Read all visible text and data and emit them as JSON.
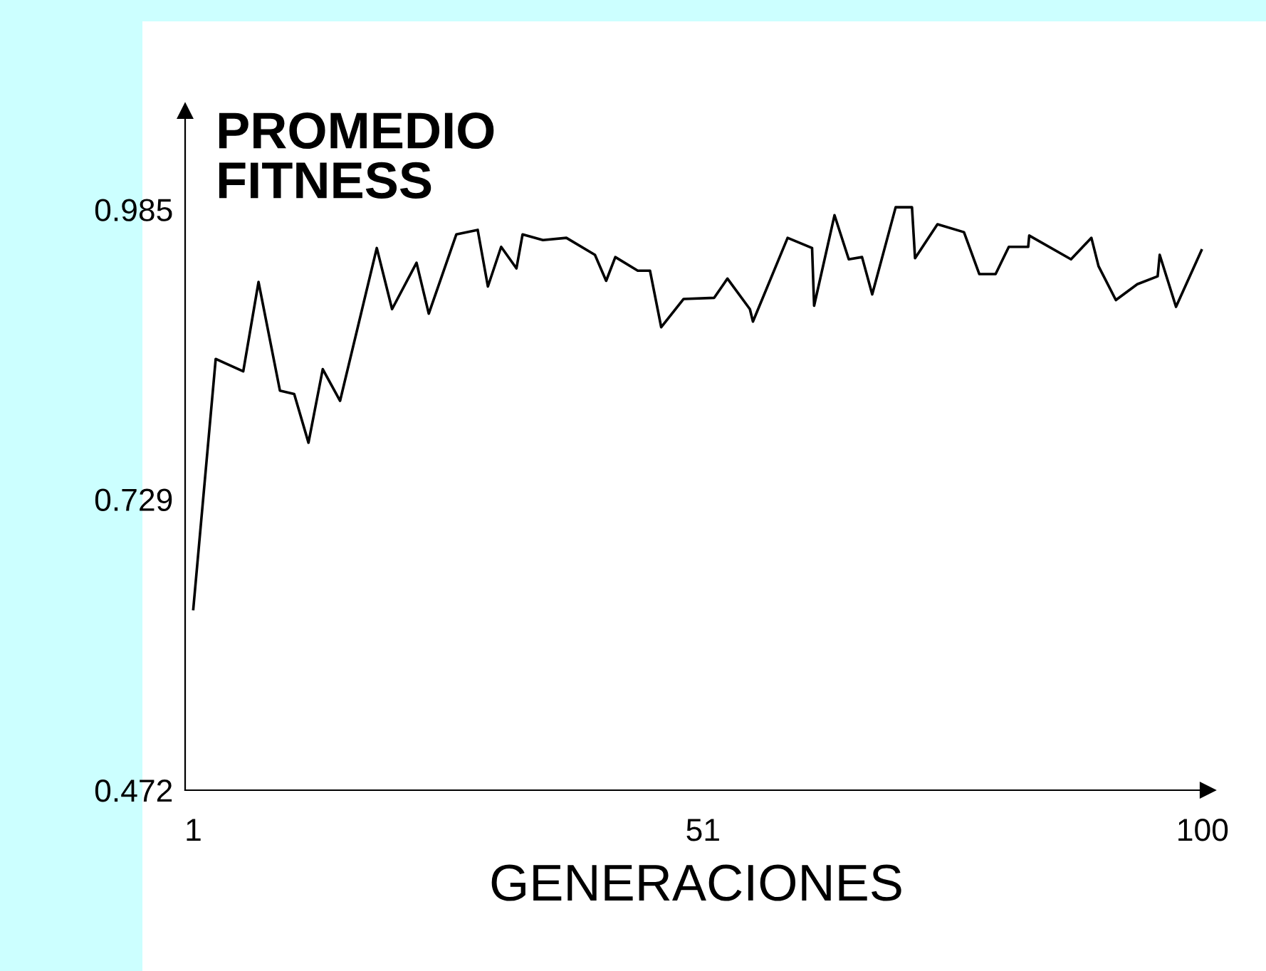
{
  "chart_data": {
    "type": "line",
    "ylabel": "PROMEDIO\nFITNESS",
    "xlabel": "GENERACIONES",
    "series": [
      {
        "color": "#000000",
        "x": [
          1,
          3.2,
          5.9,
          7.4,
          9.5,
          10.9,
          12.3,
          13.7,
          15.4,
          19.0,
          20.5,
          22.9,
          24.1,
          26.8,
          28.9,
          29.9,
          31.2,
          32.7,
          33.3,
          35.3,
          37.6,
          40.4,
          41.5,
          42.4,
          44.6,
          45.8,
          46.9,
          49.1,
          52.1,
          53.4,
          55.6,
          55.9,
          59.3,
          61.7,
          61.9,
          63.9,
          65.3,
          66.6,
          67.6,
          69.9,
          71.5,
          71.8,
          74.0,
          76.6,
          78.1,
          79.7,
          81.0,
          82.9,
          83.0,
          87.1,
          89.1,
          89.8,
          91.5,
          93.6,
          95.6,
          95.8,
          97.4,
          99.9
        ],
        "values": [
          0.632,
          0.853,
          0.842,
          0.921,
          0.825,
          0.822,
          0.779,
          0.844,
          0.816,
          0.951,
          0.897,
          0.938,
          0.893,
          0.963,
          0.967,
          0.917,
          0.952,
          0.933,
          0.963,
          0.958,
          0.96,
          0.945,
          0.922,
          0.943,
          0.931,
          0.931,
          0.881,
          0.906,
          0.907,
          0.924,
          0.897,
          0.886,
          0.96,
          0.951,
          0.9,
          0.98,
          0.941,
          0.943,
          0.91,
          0.987,
          0.987,
          0.942,
          0.972,
          0.965,
          0.928,
          0.928,
          0.952,
          0.952,
          0.962,
          0.941,
          0.96,
          0.935,
          0.905,
          0.919,
          0.926,
          0.945,
          0.899,
          0.949
        ]
      }
    ],
    "xlim": [
      0.2,
      100.5
    ],
    "xticks": [
      1,
      51,
      100
    ],
    "ylim": [
      0.472,
      1.072
    ],
    "yticks": [
      0.472,
      0.729,
      0.985
    ],
    "grid": false,
    "marker": "none",
    "line_style": "solid"
  }
}
